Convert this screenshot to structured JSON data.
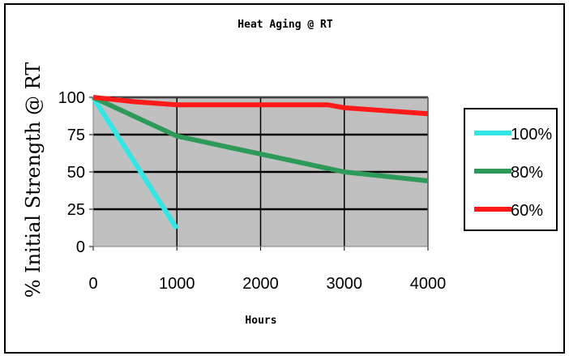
{
  "chart_data": {
    "type": "line",
    "title": "Heat Aging @ RT",
    "xlabel": "Hours",
    "ylabel": "% Initial Strength @ RT",
    "xlim": [
      0,
      4000
    ],
    "ylim": [
      0,
      100
    ],
    "xticks": [
      "0",
      "1000",
      "2000",
      "3000",
      "4000"
    ],
    "yticks": [
      "0",
      "25",
      "50",
      "75",
      "100"
    ],
    "grid": "horizontal",
    "legend": "right",
    "series": [
      {
        "name": "100%",
        "color": "#33e6e6",
        "x": [
          0,
          1000
        ],
        "y": [
          100,
          12
        ]
      },
      {
        "name": "80%",
        "color": "#2e9a5a",
        "x": [
          0,
          500,
          1000,
          1500,
          2000,
          2500,
          3000,
          3500,
          4000
        ],
        "y": [
          100,
          87,
          74,
          68,
          62,
          56,
          50,
          47,
          44
        ]
      },
      {
        "name": "60%",
        "color": "#ff1a1a",
        "x": [
          0,
          500,
          1000,
          2000,
          2800,
          3000,
          3500,
          4000
        ],
        "y": [
          100,
          97,
          95,
          95,
          95,
          93,
          91,
          89
        ]
      }
    ]
  }
}
